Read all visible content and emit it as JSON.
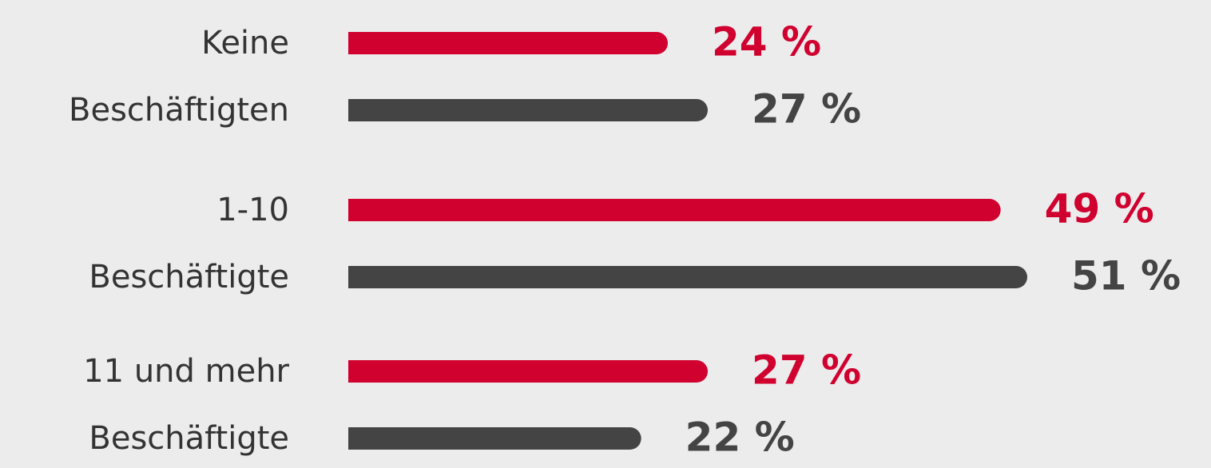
{
  "chart_data": {
    "type": "bar",
    "orientation": "horizontal",
    "categories": [
      [
        "Keine",
        "Beschäftigten"
      ],
      [
        "1-10",
        "Beschäftigte"
      ],
      [
        "11 und mehr",
        "Beschäftigte"
      ]
    ],
    "series": [
      {
        "color": "#d0002f",
        "values": [
          24,
          49,
          27
        ],
        "value_labels": [
          "24 %",
          "49 %",
          "27 %"
        ]
      },
      {
        "color": "#444444",
        "values": [
          27,
          51,
          22
        ],
        "value_labels": [
          "27 %",
          "51 %",
          "22 %"
        ]
      }
    ]
  }
}
